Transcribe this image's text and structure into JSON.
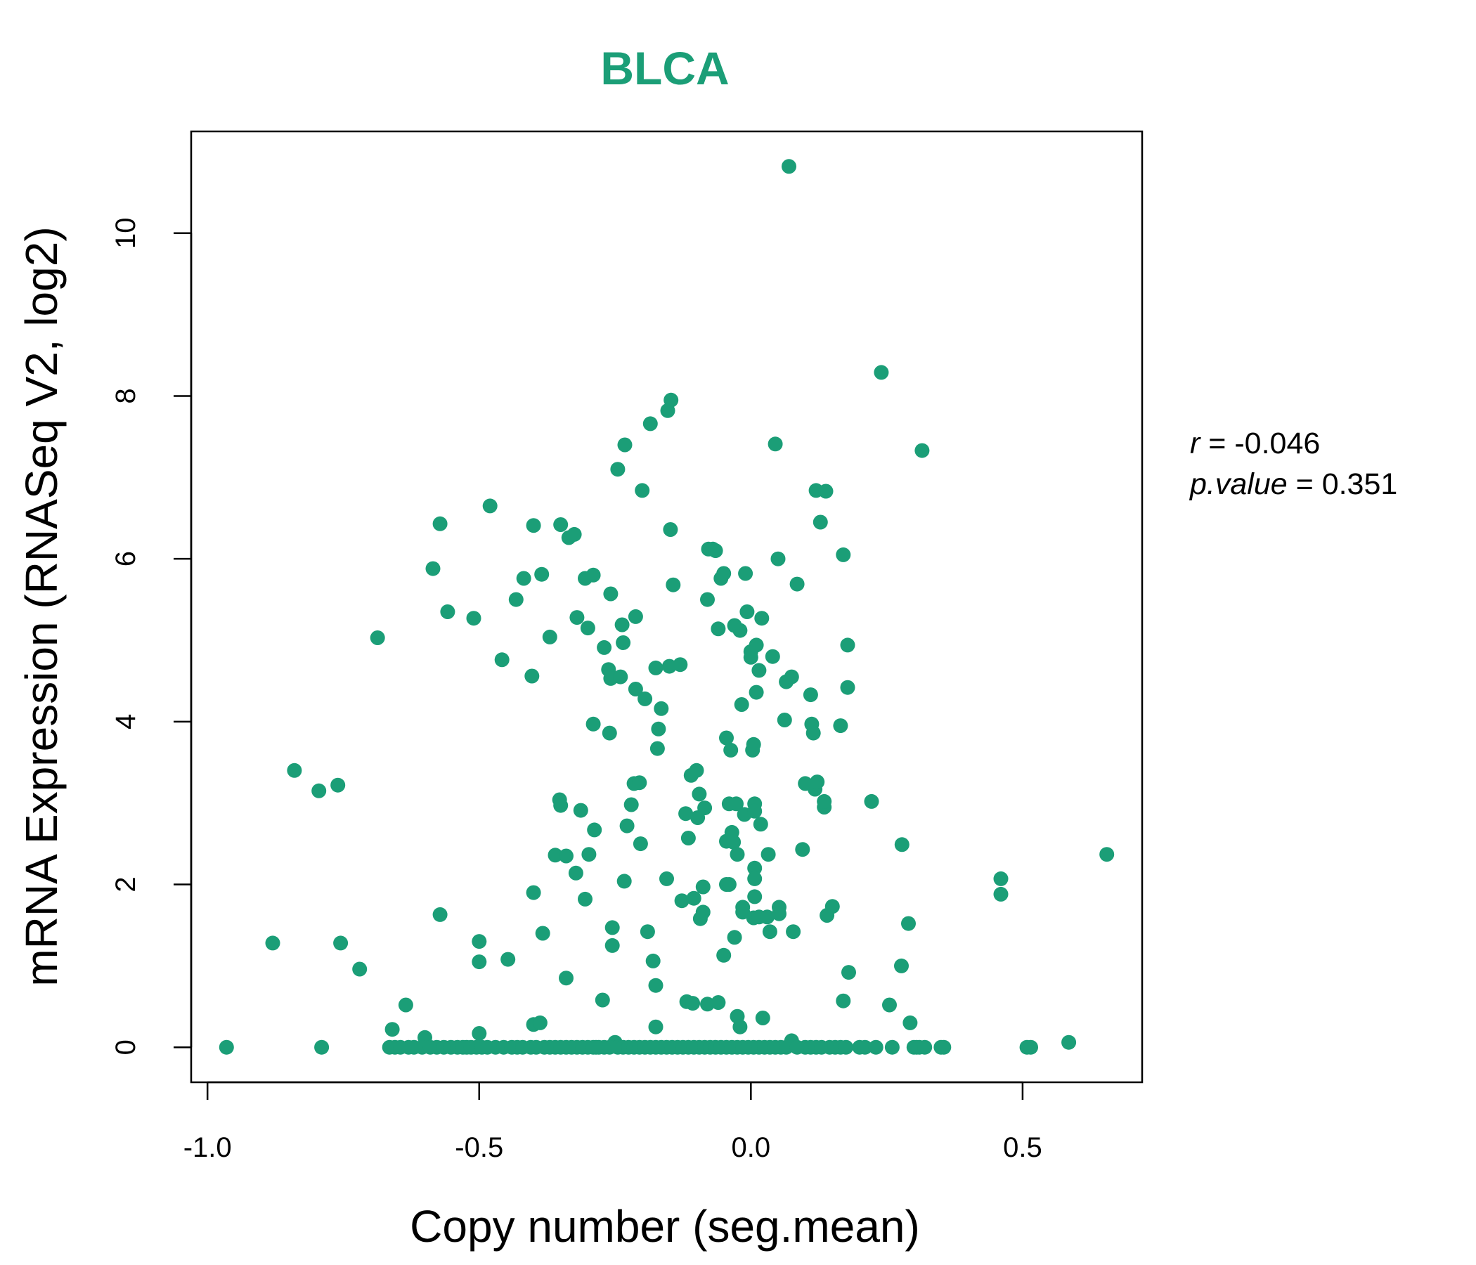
{
  "colors": {
    "accent": "#1b9e77",
    "axis": "#000000"
  },
  "chart_data": {
    "type": "scatter",
    "title": "BLCA",
    "xlabel": "Copy number (seg.mean)",
    "ylabel": "mRNA Expression (RNASeq V2, log2)",
    "xlim": [
      -1.03,
      0.72
    ],
    "ylim": [
      -0.43,
      11.25
    ],
    "xticks": [
      "-1.0",
      "-0.5",
      "0.0",
      "0.5"
    ],
    "xtick_values": [
      -1.0,
      -0.5,
      0.0,
      0.5
    ],
    "yticks": [
      "0",
      "2",
      "4",
      "6",
      "8",
      "10"
    ],
    "ytick_values": [
      0,
      2,
      4,
      6,
      8,
      10
    ],
    "grid": false,
    "stats": {
      "r_label": "r",
      "r_value": "-0.046",
      "p_label": "p.value",
      "p_value": "0.351"
    },
    "points": [
      [
        -0.965,
        0.0
      ],
      [
        -0.79,
        0.0
      ],
      [
        -0.88,
        1.28
      ],
      [
        -0.84,
        3.4
      ],
      [
        -0.795,
        3.15
      ],
      [
        -0.76,
        3.22
      ],
      [
        -0.755,
        1.28
      ],
      [
        -0.72,
        0.96
      ],
      [
        -0.687,
        5.03
      ],
      [
        -0.66,
        0.22
      ],
      [
        -0.635,
        0.52
      ],
      [
        -0.6,
        0.12
      ],
      [
        -0.585,
        5.88
      ],
      [
        -0.572,
        6.43
      ],
      [
        -0.572,
        1.63
      ],
      [
        -0.558,
        5.35
      ],
      [
        -0.523,
        0.0
      ],
      [
        -0.51,
        5.27
      ],
      [
        -0.5,
        1.3
      ],
      [
        -0.5,
        1.05
      ],
      [
        -0.5,
        0.17
      ],
      [
        -0.48,
        6.65
      ],
      [
        -0.458,
        4.76
      ],
      [
        -0.447,
        1.08
      ],
      [
        -0.432,
        5.5
      ],
      [
        -0.418,
        5.76
      ],
      [
        -0.403,
        4.56
      ],
      [
        -0.4,
        6.41
      ],
      [
        -0.4,
        1.9
      ],
      [
        -0.4,
        0.28
      ],
      [
        -0.388,
        0.3
      ],
      [
        -0.385,
        5.81
      ],
      [
        -0.383,
        1.4
      ],
      [
        -0.37,
        5.04
      ],
      [
        -0.36,
        2.36
      ],
      [
        -0.36,
        0.0
      ],
      [
        -0.352,
        3.04
      ],
      [
        -0.35,
        6.42
      ],
      [
        -0.35,
        2.97
      ],
      [
        -0.34,
        2.35
      ],
      [
        -0.34,
        0.85
      ],
      [
        -0.335,
        6.26
      ],
      [
        -0.325,
        6.3
      ],
      [
        -0.322,
        2.14
      ],
      [
        -0.32,
        5.28
      ],
      [
        -0.313,
        2.91
      ],
      [
        -0.305,
        1.82
      ],
      [
        -0.305,
        5.76
      ],
      [
        -0.3,
        5.15
      ],
      [
        -0.298,
        2.37
      ],
      [
        -0.29,
        5.8
      ],
      [
        -0.29,
        3.97
      ],
      [
        -0.288,
        2.67
      ],
      [
        -0.28,
        0.0
      ],
      [
        -0.273,
        0.58
      ],
      [
        -0.27,
        4.91
      ],
      [
        -0.262,
        4.64
      ],
      [
        -0.26,
        3.86
      ],
      [
        -0.258,
        5.57
      ],
      [
        -0.258,
        4.53
      ],
      [
        -0.255,
        1.47
      ],
      [
        -0.255,
        1.25
      ],
      [
        -0.25,
        0.06
      ],
      [
        -0.245,
        7.1
      ],
      [
        -0.24,
        4.55
      ],
      [
        -0.237,
        5.19
      ],
      [
        -0.235,
        4.97
      ],
      [
        -0.233,
        2.04
      ],
      [
        -0.232,
        7.4
      ],
      [
        -0.228,
        2.72
      ],
      [
        -0.22,
        2.98
      ],
      [
        -0.215,
        3.24
      ],
      [
        -0.212,
        5.29
      ],
      [
        -0.212,
        4.4
      ],
      [
        -0.205,
        3.25
      ],
      [
        -0.203,
        2.5
      ],
      [
        -0.2,
        6.84
      ],
      [
        -0.195,
        4.28
      ],
      [
        -0.19,
        1.42
      ],
      [
        -0.185,
        7.66
      ],
      [
        -0.18,
        1.06
      ],
      [
        -0.175,
        4.66
      ],
      [
        -0.175,
        0.76
      ],
      [
        -0.175,
        0.25
      ],
      [
        -0.172,
        3.67
      ],
      [
        -0.17,
        3.91
      ],
      [
        -0.165,
        4.16
      ],
      [
        -0.155,
        2.07
      ],
      [
        -0.153,
        7.82
      ],
      [
        -0.15,
        4.68
      ],
      [
        -0.148,
        6.36
      ],
      [
        -0.147,
        7.95
      ],
      [
        -0.143,
        5.68
      ],
      [
        -0.13,
        4.7
      ],
      [
        -0.127,
        1.8
      ],
      [
        -0.12,
        2.87
      ],
      [
        -0.118,
        0.56
      ],
      [
        -0.115,
        2.57
      ],
      [
        -0.11,
        3.34
      ],
      [
        -0.107,
        0.54
      ],
      [
        -0.105,
        1.83
      ],
      [
        -0.1,
        3.4
      ],
      [
        -0.098,
        2.82
      ],
      [
        -0.095,
        3.11
      ],
      [
        -0.093,
        1.58
      ],
      [
        -0.088,
        1.97
      ],
      [
        -0.088,
        1.66
      ],
      [
        -0.085,
        2.94
      ],
      [
        -0.08,
        0.53
      ],
      [
        -0.08,
        5.5
      ],
      [
        -0.078,
        6.12
      ],
      [
        -0.07,
        6.12
      ],
      [
        -0.065,
        6.1
      ],
      [
        -0.06,
        5.14
      ],
      [
        -0.06,
        0.55
      ],
      [
        -0.055,
        5.76
      ],
      [
        -0.05,
        5.82
      ],
      [
        -0.05,
        1.13
      ],
      [
        -0.045,
        2.0
      ],
      [
        -0.045,
        2.53
      ],
      [
        -0.045,
        3.8
      ],
      [
        -0.04,
        2.0
      ],
      [
        -0.04,
        2.99
      ],
      [
        -0.037,
        3.65
      ],
      [
        -0.035,
        2.64
      ],
      [
        -0.032,
        2.52
      ],
      [
        -0.03,
        1.35
      ],
      [
        -0.03,
        5.18
      ],
      [
        -0.027,
        2.99
      ],
      [
        -0.025,
        0.38
      ],
      [
        -0.025,
        2.37
      ],
      [
        -0.02,
        5.12
      ],
      [
        -0.02,
        0.25
      ],
      [
        -0.017,
        4.21
      ],
      [
        -0.015,
        1.72
      ],
      [
        -0.015,
        1.66
      ],
      [
        -0.012,
        2.86
      ],
      [
        -0.01,
        5.82
      ],
      [
        -0.007,
        5.35
      ],
      [
        0.0,
        4.86
      ],
      [
        0.0,
        4.79
      ],
      [
        0.003,
        3.65
      ],
      [
        0.005,
        3.72
      ],
      [
        0.005,
        1.59
      ],
      [
        0.007,
        2.99
      ],
      [
        0.007,
        2.9
      ],
      [
        0.007,
        2.2
      ],
      [
        0.007,
        2.07
      ],
      [
        0.007,
        1.85
      ],
      [
        0.01,
        4.36
      ],
      [
        0.01,
        4.94
      ],
      [
        0.015,
        4.63
      ],
      [
        0.015,
        1.6
      ],
      [
        0.018,
        2.74
      ],
      [
        0.02,
        5.27
      ],
      [
        0.022,
        0.36
      ],
      [
        0.03,
        1.6
      ],
      [
        0.032,
        2.37
      ],
      [
        0.035,
        1.42
      ],
      [
        0.04,
        4.8
      ],
      [
        0.045,
        7.41
      ],
      [
        0.05,
        6.0
      ],
      [
        0.052,
        1.72
      ],
      [
        0.052,
        1.64
      ],
      [
        0.062,
        4.02
      ],
      [
        0.065,
        4.49
      ],
      [
        0.07,
        10.82
      ],
      [
        0.075,
        4.55
      ],
      [
        0.075,
        0.08
      ],
      [
        0.078,
        1.42
      ],
      [
        0.085,
        5.69
      ],
      [
        0.095,
        2.43
      ],
      [
        0.1,
        3.24
      ],
      [
        0.11,
        4.33
      ],
      [
        0.112,
        3.97
      ],
      [
        0.115,
        3.86
      ],
      [
        0.118,
        3.17
      ],
      [
        0.12,
        6.84
      ],
      [
        0.122,
        3.26
      ],
      [
        0.128,
        6.45
      ],
      [
        0.135,
        2.95
      ],
      [
        0.135,
        3.02
      ],
      [
        0.138,
        6.83
      ],
      [
        0.14,
        1.62
      ],
      [
        0.15,
        1.73
      ],
      [
        0.165,
        3.95
      ],
      [
        0.17,
        6.05
      ],
      [
        0.17,
        0.57
      ],
      [
        0.178,
        4.94
      ],
      [
        0.178,
        4.42
      ],
      [
        0.18,
        0.92
      ],
      [
        0.222,
        3.02
      ],
      [
        0.24,
        8.29
      ],
      [
        0.255,
        0.52
      ],
      [
        0.277,
        1.0
      ],
      [
        0.278,
        2.49
      ],
      [
        0.29,
        1.52
      ],
      [
        0.293,
        0.3
      ],
      [
        0.315,
        7.33
      ],
      [
        0.46,
        2.07
      ],
      [
        0.46,
        1.88
      ],
      [
        0.508,
        0.0
      ],
      [
        0.515,
        0.0
      ],
      [
        0.585,
        0.06
      ],
      [
        0.655,
        2.37
      ]
    ],
    "zero_points_x": [
      -0.665,
      -0.655,
      -0.645,
      -0.63,
      -0.62,
      -0.605,
      -0.59,
      -0.578,
      -0.565,
      -0.552,
      -0.54,
      -0.53,
      -0.515,
      -0.505,
      -0.495,
      -0.485,
      -0.47,
      -0.455,
      -0.44,
      -0.43,
      -0.42,
      -0.405,
      -0.395,
      -0.38,
      -0.37,
      -0.35,
      -0.34,
      -0.33,
      -0.32,
      -0.31,
      -0.3,
      -0.29,
      -0.285,
      -0.27,
      -0.26,
      -0.245,
      -0.235,
      -0.225,
      -0.215,
      -0.205,
      -0.195,
      -0.185,
      -0.175,
      -0.165,
      -0.155,
      -0.145,
      -0.135,
      -0.125,
      -0.115,
      -0.105,
      -0.095,
      -0.085,
      -0.075,
      -0.065,
      -0.055,
      -0.045,
      -0.035,
      -0.025,
      -0.015,
      -0.005,
      0.005,
      0.015,
      0.025,
      0.035,
      0.045,
      0.055,
      0.065,
      0.085,
      0.1,
      0.11,
      0.12,
      0.13,
      0.145,
      0.155,
      0.165,
      0.175,
      0.2,
      0.21,
      0.23,
      0.26,
      0.3,
      0.305,
      0.31,
      0.32,
      0.35,
      0.355
    ]
  }
}
